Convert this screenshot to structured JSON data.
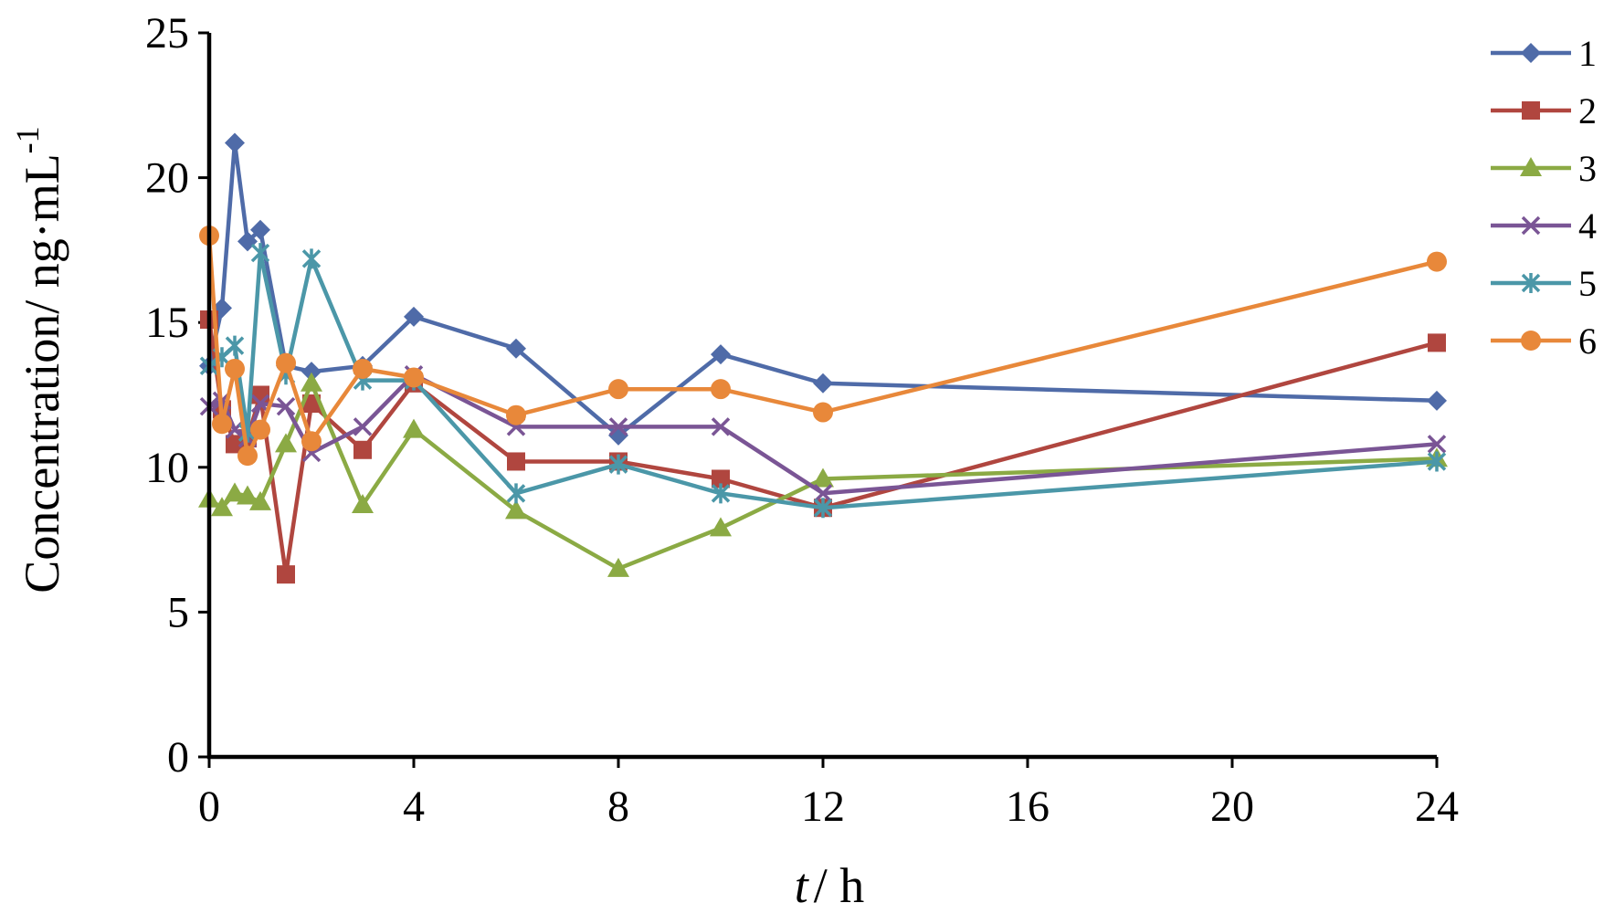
{
  "chart_data": {
    "type": "line",
    "title": "",
    "xlabel_parts": {
      "var": "t",
      "rest": "/ h"
    },
    "ylabel": "Concentration/ ng·mL",
    "ylabel_sup": "-1",
    "xlim": [
      0,
      24
    ],
    "ylim": [
      0,
      25
    ],
    "xticks": [
      0,
      4,
      8,
      12,
      16,
      20,
      24
    ],
    "xtick_labels": [
      "0",
      "4",
      "8",
      "12",
      "16",
      "20",
      "24"
    ],
    "yticks": [
      0,
      5,
      10,
      15,
      20,
      25
    ],
    "ytick_labels": [
      "0",
      "5",
      "10",
      "15",
      "20",
      "25"
    ],
    "grid": false,
    "legend_position": "top-right",
    "series": [
      {
        "name": "1",
        "color": "#4F6BA8",
        "marker": "diamond",
        "points": [
          [
            0,
            13.5
          ],
          [
            0.25,
            15.5
          ],
          [
            0.5,
            21.2
          ],
          [
            0.75,
            17.8
          ],
          [
            1,
            18.2
          ],
          [
            1.5,
            13.5
          ],
          [
            2,
            13.3
          ],
          [
            3,
            13.5
          ],
          [
            4,
            15.2
          ],
          [
            6,
            14.1
          ],
          [
            8,
            11.1
          ],
          [
            10,
            13.9
          ],
          [
            12,
            12.9
          ],
          [
            24,
            12.3
          ]
        ]
      },
      {
        "name": "2",
        "color": "#B0463F",
        "marker": "square",
        "points": [
          [
            0,
            15.1
          ],
          [
            0.25,
            12.0
          ],
          [
            0.5,
            10.8
          ],
          [
            0.75,
            11.0
          ],
          [
            1,
            12.5
          ],
          [
            1.5,
            6.3
          ],
          [
            2,
            12.2
          ],
          [
            3,
            10.6
          ],
          [
            4,
            12.9
          ],
          [
            6,
            10.2
          ],
          [
            8,
            10.2
          ],
          [
            10,
            9.6
          ],
          [
            12,
            8.6
          ],
          [
            24,
            14.3
          ]
        ]
      },
      {
        "name": "3",
        "color": "#8BAA44",
        "marker": "triangle",
        "points": [
          [
            0,
            8.9
          ],
          [
            0.25,
            8.6
          ],
          [
            0.5,
            9.1
          ],
          [
            0.75,
            9.0
          ],
          [
            1,
            8.8
          ],
          [
            1.5,
            10.8
          ],
          [
            2,
            12.9
          ],
          [
            3,
            8.7
          ],
          [
            4,
            11.3
          ],
          [
            6,
            8.5
          ],
          [
            8,
            6.5
          ],
          [
            10,
            7.9
          ],
          [
            12,
            9.6
          ],
          [
            24,
            10.3
          ]
        ]
      },
      {
        "name": "4",
        "color": "#7A5595",
        "marker": "x",
        "points": [
          [
            0,
            12.1
          ],
          [
            0.25,
            12.3
          ],
          [
            0.5,
            11.3
          ],
          [
            0.75,
            11.0
          ],
          [
            1,
            12.2
          ],
          [
            1.5,
            12.1
          ],
          [
            2,
            10.5
          ],
          [
            3,
            11.4
          ],
          [
            4,
            13.2
          ],
          [
            6,
            11.4
          ],
          [
            8,
            11.4
          ],
          [
            10,
            11.4
          ],
          [
            12,
            9.1
          ],
          [
            24,
            10.8
          ]
        ]
      },
      {
        "name": "5",
        "color": "#4B97A8",
        "marker": "asterisk",
        "points": [
          [
            0,
            13.5
          ],
          [
            0.25,
            13.8
          ],
          [
            0.5,
            14.2
          ],
          [
            0.75,
            11.2
          ],
          [
            1,
            17.4
          ],
          [
            1.5,
            13.2
          ],
          [
            2,
            17.2
          ],
          [
            3,
            13.0
          ],
          [
            4,
            13.0
          ],
          [
            6,
            9.1
          ],
          [
            8,
            10.1
          ],
          [
            10,
            9.1
          ],
          [
            12,
            8.6
          ],
          [
            24,
            10.2
          ]
        ]
      },
      {
        "name": "6",
        "color": "#E8883A",
        "marker": "circle",
        "points": [
          [
            0,
            18.0
          ],
          [
            0.25,
            11.5
          ],
          [
            0.5,
            13.4
          ],
          [
            0.75,
            10.4
          ],
          [
            1,
            11.3
          ],
          [
            1.5,
            13.6
          ],
          [
            2,
            10.9
          ],
          [
            3,
            13.4
          ],
          [
            4,
            13.1
          ],
          [
            6,
            11.8
          ],
          [
            8,
            12.7
          ],
          [
            10,
            12.7
          ],
          [
            12,
            11.9
          ],
          [
            24,
            17.1
          ]
        ]
      }
    ]
  }
}
